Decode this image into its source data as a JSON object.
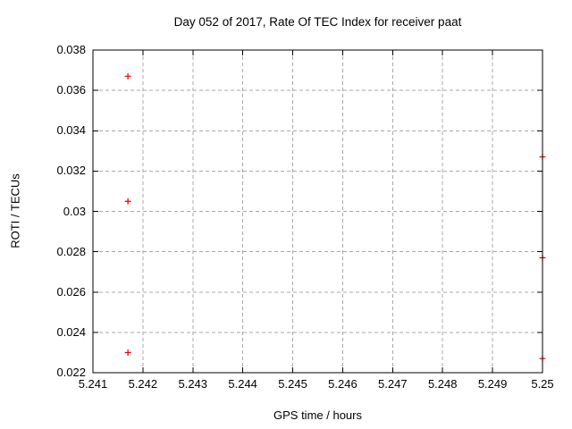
{
  "chart_data": {
    "type": "scatter",
    "title": "Day 052 of 2017, Rate Of TEC Index for receiver paat",
    "xlabel": "GPS time / hours",
    "ylabel": "ROTI / TECUs",
    "xlim": [
      5.241,
      5.25
    ],
    "ylim": [
      0.022,
      0.038
    ],
    "grid": "dashed",
    "legend_position": "none",
    "marker": "plus",
    "marker_color": "#ee0000",
    "axis_color": "#000000",
    "grid_color": "#a8a8a8",
    "xticks": [
      {
        "value": 5.241,
        "label": "5.241"
      },
      {
        "value": 5.242,
        "label": "5.242"
      },
      {
        "value": 5.243,
        "label": "5.243"
      },
      {
        "value": 5.244,
        "label": "5.244"
      },
      {
        "value": 5.245,
        "label": "5.245"
      },
      {
        "value": 5.246,
        "label": "5.246"
      },
      {
        "value": 5.247,
        "label": "5.247"
      },
      {
        "value": 5.248,
        "label": "5.248"
      },
      {
        "value": 5.249,
        "label": "5.249"
      },
      {
        "value": 5.25,
        "label": "5.25"
      }
    ],
    "yticks": [
      {
        "value": 0.022,
        "label": "0.022"
      },
      {
        "value": 0.024,
        "label": "0.024"
      },
      {
        "value": 0.026,
        "label": "0.026"
      },
      {
        "value": 0.028,
        "label": "0.028"
      },
      {
        "value": 0.03,
        "label": "0.03"
      },
      {
        "value": 0.032,
        "label": "0.032"
      },
      {
        "value": 0.034,
        "label": "0.034"
      },
      {
        "value": 0.036,
        "label": "0.036"
      },
      {
        "value": 0.038,
        "label": "0.038"
      }
    ],
    "points": [
      {
        "x": 5.2417,
        "y": 0.0367
      },
      {
        "x": 5.2417,
        "y": 0.0305
      },
      {
        "x": 5.2417,
        "y": 0.023
      },
      {
        "x": 5.25,
        "y": 0.0327
      },
      {
        "x": 5.25,
        "y": 0.0277
      },
      {
        "x": 5.25,
        "y": 0.0227
      }
    ]
  }
}
